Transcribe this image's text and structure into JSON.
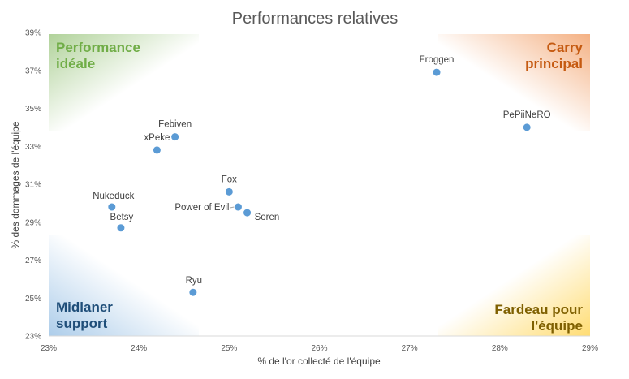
{
  "chart_data": {
    "type": "scatter",
    "title": "Performances relatives",
    "xlabel": "% de l'or collecté de l'équipe",
    "ylabel": "% des dommages de l'équipe",
    "xlim": [
      23,
      29
    ],
    "ylim": [
      23,
      39
    ],
    "x_ticks": [
      "23%",
      "24%",
      "25%",
      "26%",
      "27%",
      "28%",
      "29%"
    ],
    "y_ticks": [
      "23%",
      "25%",
      "27%",
      "29%",
      "31%",
      "33%",
      "35%",
      "37%",
      "39%"
    ],
    "grid": false,
    "marker_color": "#5b9bd5",
    "points": [
      {
        "label": "Froggen",
        "x": 27.3,
        "y": 36.9
      },
      {
        "label": "PePiiNeRO",
        "x": 28.3,
        "y": 34.0
      },
      {
        "label": "Febiven",
        "x": 24.4,
        "y": 33.5
      },
      {
        "label": "xPeke",
        "x": 24.2,
        "y": 32.8
      },
      {
        "label": "Fox",
        "x": 25.0,
        "y": 30.6
      },
      {
        "label": "Power of Evil",
        "x": 25.1,
        "y": 29.8
      },
      {
        "label": "Soren",
        "x": 25.2,
        "y": 29.5
      },
      {
        "label": "Nukeduck",
        "x": 23.7,
        "y": 29.8
      },
      {
        "label": "Betsy",
        "x": 23.8,
        "y": 28.7
      },
      {
        "label": "Ryu",
        "x": 24.6,
        "y": 25.3
      }
    ],
    "annotations": [
      {
        "lines": [
          "Performance",
          "idéale"
        ],
        "position": "top-left",
        "color": "#70ad47"
      },
      {
        "lines": [
          "Carry",
          "principal"
        ],
        "position": "top-right",
        "color": "#c55a11"
      },
      {
        "lines": [
          "Midlaner",
          "support"
        ],
        "position": "bottom-left",
        "color": "#1f4e79"
      },
      {
        "lines": [
          "Fardeau pour",
          "l'équipe"
        ],
        "position": "bottom-right",
        "color": "#7f6000"
      }
    ]
  }
}
